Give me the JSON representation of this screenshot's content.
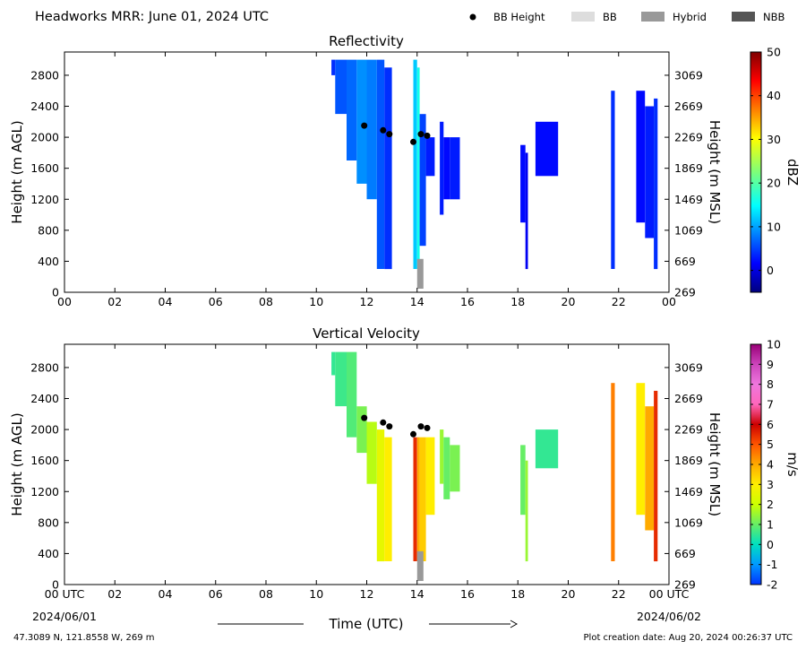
{
  "header": {
    "title": "Headworks MRR:  June 01, 2024 UTC"
  },
  "legend": [
    {
      "label": "BB Height",
      "kind": "marker",
      "color": "#000000"
    },
    {
      "label": "BB",
      "kind": "swatch",
      "color": "#dddddd"
    },
    {
      "label": "Hybrid",
      "kind": "swatch",
      "color": "#999999"
    },
    {
      "label": "NBB",
      "kind": "swatch",
      "color": "#555555"
    }
  ],
  "shared_axes": {
    "x_ticks": [
      "00",
      "02",
      "04",
      "06",
      "08",
      "10",
      "12",
      "14",
      "16",
      "18",
      "20",
      "22",
      "00"
    ],
    "x_tick_first_bottom": "00 UTC",
    "x_tick_last_bottom": "00 UTC",
    "date_start": "2024/06/01",
    "date_end": "2024/06/02",
    "xlabel": "Time (UTC)",
    "ylabel_left": "Height (m AGL)",
    "ylabel_right": "Height (m MSL)",
    "y_ticks_left": [
      "0",
      "400",
      "800",
      "1200",
      "1600",
      "2000",
      "2400",
      "2800"
    ],
    "y_ticks_right": [
      "269",
      "669",
      "1069",
      "1469",
      "1869",
      "2269",
      "2669",
      "3069"
    ]
  },
  "footer": {
    "location": "47.3089 N, 121.8558 W, 269 m",
    "created": "Plot creation date: Aug 20, 2024 00:26:37 UTC"
  },
  "chart_data": [
    {
      "type": "heatmap",
      "title": "Reflectivity",
      "xlabel": "Time (UTC)",
      "ylabel": "Height (m AGL)",
      "ylabel_right": "Height (m MSL)",
      "xlim": [
        0,
        24
      ],
      "ylim": [
        0,
        3100
      ],
      "colorbar": {
        "label": "dBZ",
        "range": [
          -5,
          50
        ],
        "ticks": [
          "0",
          "10",
          "20",
          "30",
          "40",
          "50"
        ],
        "tick_values": [
          0,
          10,
          20,
          30,
          40,
          50
        ],
        "colormap": "jet"
      },
      "bb_height": {
        "x": [
          11.9,
          12.65,
          12.9,
          13.85,
          14.15,
          14.4
        ],
        "y": [
          2150,
          2090,
          2040,
          1940,
          2040,
          2020
        ]
      },
      "bb_type_bars": [
        {
          "x_start": 14.0,
          "x_end": 14.25,
          "type": "Hybrid"
        }
      ],
      "echoes": [
        {
          "x_start": 10.6,
          "x_end": 10.75,
          "y_bottom": 2800,
          "y_top": 3000,
          "value": 4
        },
        {
          "x_start": 10.75,
          "x_end": 11.2,
          "y_bottom": 2300,
          "y_top": 3000,
          "value": 6
        },
        {
          "x_start": 11.2,
          "x_end": 11.6,
          "y_bottom": 1700,
          "y_top": 3000,
          "value": 7
        },
        {
          "x_start": 11.6,
          "x_end": 12.0,
          "y_bottom": 1400,
          "y_top": 3000,
          "value": 9
        },
        {
          "x_start": 12.0,
          "x_end": 12.4,
          "y_bottom": 1200,
          "y_top": 3000,
          "value": 8
        },
        {
          "x_start": 12.4,
          "x_end": 12.7,
          "y_bottom": 300,
          "y_top": 3000,
          "value": 6
        },
        {
          "x_start": 12.7,
          "x_end": 13.0,
          "y_bottom": 300,
          "y_top": 2900,
          "value": 4
        },
        {
          "x_start": 13.85,
          "x_end": 14.0,
          "y_bottom": 300,
          "y_top": 3000,
          "value": 12
        },
        {
          "x_start": 14.0,
          "x_end": 14.1,
          "y_bottom": 300,
          "y_top": 2900,
          "value": 16
        },
        {
          "x_start": 14.1,
          "x_end": 14.35,
          "y_bottom": 600,
          "y_top": 2300,
          "value": 5
        },
        {
          "x_start": 14.35,
          "x_end": 14.7,
          "y_bottom": 1500,
          "y_top": 2000,
          "value": 3
        },
        {
          "x_start": 14.9,
          "x_end": 15.05,
          "y_bottom": 1000,
          "y_top": 2200,
          "value": 3
        },
        {
          "x_start": 15.05,
          "x_end": 15.3,
          "y_bottom": 1200,
          "y_top": 2000,
          "value": 2
        },
        {
          "x_start": 15.3,
          "x_end": 15.7,
          "y_bottom": 1200,
          "y_top": 2000,
          "value": 3
        },
        {
          "x_start": 18.1,
          "x_end": 18.3,
          "y_bottom": 900,
          "y_top": 1900,
          "value": 2
        },
        {
          "x_start": 18.3,
          "x_end": 18.4,
          "y_bottom": 300,
          "y_top": 1800,
          "value": 1
        },
        {
          "x_start": 18.7,
          "x_end": 19.6,
          "y_bottom": 1500,
          "y_top": 2200,
          "value": 2
        },
        {
          "x_start": 21.7,
          "x_end": 21.85,
          "y_bottom": 300,
          "y_top": 2600,
          "value": 4
        },
        {
          "x_start": 22.7,
          "x_end": 23.05,
          "y_bottom": 900,
          "y_top": 2600,
          "value": 2
        },
        {
          "x_start": 23.05,
          "x_end": 23.4,
          "y_bottom": 700,
          "y_top": 2400,
          "value": 3
        },
        {
          "x_start": 23.4,
          "x_end": 23.55,
          "y_bottom": 300,
          "y_top": 2500,
          "value": 4
        }
      ]
    },
    {
      "type": "heatmap",
      "title": "Vertical Velocity",
      "xlabel": "Time (UTC)",
      "ylabel": "Height (m AGL)",
      "ylabel_right": "Height (m MSL)",
      "xlim": [
        0,
        24
      ],
      "ylim": [
        0,
        3100
      ],
      "colorbar": {
        "label": "m/s",
        "range": [
          -2,
          10
        ],
        "ticks": [
          "-2",
          "-1",
          "0",
          "1",
          "2",
          "3",
          "4",
          "5",
          "6",
          "7",
          "8",
          "9",
          "10"
        ],
        "tick_values": [
          -2,
          -1,
          0,
          1,
          2,
          3,
          4,
          5,
          6,
          7,
          8,
          9,
          10
        ],
        "colormap": "velocity"
      },
      "bb_height": {
        "x": [
          11.9,
          12.65,
          12.9,
          13.85,
          14.15,
          14.4
        ],
        "y": [
          2150,
          2090,
          2040,
          1940,
          2040,
          2020
        ]
      },
      "bb_type_bars": [
        {
          "x_start": 14.0,
          "x_end": 14.25,
          "type": "Hybrid"
        }
      ],
      "echoes": [
        {
          "x_start": 10.6,
          "x_end": 10.75,
          "y_bottom": 2700,
          "y_top": 3000,
          "value": 0.5
        },
        {
          "x_start": 10.75,
          "x_end": 11.2,
          "y_bottom": 2300,
          "y_top": 3000,
          "value": 0.6
        },
        {
          "x_start": 11.2,
          "x_end": 11.6,
          "y_bottom": 1900,
          "y_top": 3000,
          "value": 0.8
        },
        {
          "x_start": 11.6,
          "x_end": 12.0,
          "y_bottom": 1700,
          "y_top": 2300,
          "value": 1.2
        },
        {
          "x_start": 12.0,
          "x_end": 12.4,
          "y_bottom": 1300,
          "y_top": 2100,
          "value": 1.8
        },
        {
          "x_start": 12.4,
          "x_end": 12.7,
          "y_bottom": 300,
          "y_top": 2000,
          "value": 2.5
        },
        {
          "x_start": 12.7,
          "x_end": 13.0,
          "y_bottom": 300,
          "y_top": 1900,
          "value": 3.0
        },
        {
          "x_start": 13.85,
          "x_end": 14.0,
          "y_bottom": 300,
          "y_top": 1900,
          "value": 5.5
        },
        {
          "x_start": 14.0,
          "x_end": 14.1,
          "y_bottom": 300,
          "y_top": 1900,
          "value": 4.0
        },
        {
          "x_start": 14.1,
          "x_end": 14.35,
          "y_bottom": 300,
          "y_top": 1900,
          "value": 3.5
        },
        {
          "x_start": 14.35,
          "x_end": 14.7,
          "y_bottom": 900,
          "y_top": 1900,
          "value": 3.0
        },
        {
          "x_start": 14.9,
          "x_end": 15.05,
          "y_bottom": 1300,
          "y_top": 2000,
          "value": 1.5
        },
        {
          "x_start": 15.05,
          "x_end": 15.3,
          "y_bottom": 1100,
          "y_top": 1900,
          "value": 1.0
        },
        {
          "x_start": 15.3,
          "x_end": 15.7,
          "y_bottom": 1200,
          "y_top": 1800,
          "value": 1.2
        },
        {
          "x_start": 18.1,
          "x_end": 18.3,
          "y_bottom": 900,
          "y_top": 1800,
          "value": 1.0
        },
        {
          "x_start": 18.3,
          "x_end": 18.4,
          "y_bottom": 300,
          "y_top": 1600,
          "value": 1.5
        },
        {
          "x_start": 18.7,
          "x_end": 19.6,
          "y_bottom": 1500,
          "y_top": 2000,
          "value": 0.5
        },
        {
          "x_start": 21.7,
          "x_end": 21.85,
          "y_bottom": 300,
          "y_top": 2600,
          "value": 4.5
        },
        {
          "x_start": 22.7,
          "x_end": 23.05,
          "y_bottom": 900,
          "y_top": 2600,
          "value": 3.0
        },
        {
          "x_start": 23.05,
          "x_end": 23.4,
          "y_bottom": 700,
          "y_top": 2300,
          "value": 4.0
        },
        {
          "x_start": 23.4,
          "x_end": 23.55,
          "y_bottom": 300,
          "y_top": 2500,
          "value": 5.5
        }
      ]
    }
  ]
}
